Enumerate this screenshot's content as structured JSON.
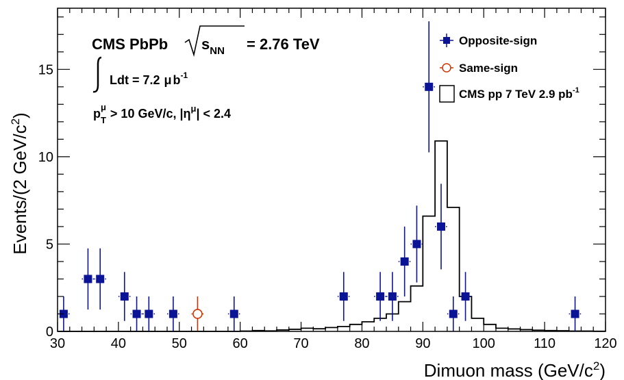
{
  "chart_data": {
    "type": "scatter",
    "x_axis": {
      "label": "Dimuon mass (GeV/c",
      "label_sup": "2",
      "label_end": ")",
      "range": [
        30,
        120
      ],
      "ticks": [
        "30",
        "40",
        "50",
        "60",
        "70",
        "80",
        "90",
        "100",
        "110",
        "120"
      ]
    },
    "y_axis": {
      "label": "Events/(2 GeV/c",
      "label_sup": "2",
      "label_end": ")",
      "range": [
        0,
        18.5
      ],
      "ticks": [
        "0",
        "5",
        "10",
        "15"
      ]
    },
    "annotations": {
      "line1_a": "CMS PbPb",
      "line1_s": "s",
      "line1_nn": "NN",
      "line1_b": "= 2.76 TeV",
      "line2_a": "Ldt = 7.2",
      "line2_mu": "μ",
      "line2_b": "b",
      "line2_sup": "-1",
      "line3_p": "p",
      "line3_sub": "T",
      "line3_sup": "μ",
      "line3_a": "> 10 GeV/c, |η",
      "line3_sup2": "μ",
      "line3_b": "| < 2.4"
    },
    "legend": {
      "placement": "top-right",
      "opposite": "Opposite-sign",
      "same": "Same-sign",
      "pp": "CMS pp 7 TeV 2.9 pb",
      "pp_sup": "-1"
    },
    "colors": {
      "opposite": "#0a1494",
      "same": "#cc3300",
      "histogram": "#000000"
    },
    "series": [
      {
        "name": "Opposite-sign",
        "points": [
          {
            "x": 31,
            "y": 1,
            "err": 1
          },
          {
            "x": 35,
            "y": 3,
            "err": 1.75
          },
          {
            "x": 37,
            "y": 3,
            "err": 1.75
          },
          {
            "x": 41,
            "y": 2,
            "err": 1.4
          },
          {
            "x": 43,
            "y": 1,
            "err": 1
          },
          {
            "x": 45,
            "y": 1,
            "err": 1
          },
          {
            "x": 49,
            "y": 1,
            "err": 1
          },
          {
            "x": 59,
            "y": 1,
            "err": 1
          },
          {
            "x": 77,
            "y": 2,
            "err": 1.4
          },
          {
            "x": 83,
            "y": 2,
            "err": 1.4
          },
          {
            "x": 85,
            "y": 2,
            "err": 1.4
          },
          {
            "x": 87,
            "y": 4,
            "err": 2.0
          },
          {
            "x": 89,
            "y": 5,
            "err": 2.2
          },
          {
            "x": 91,
            "y": 14,
            "err": 3.75
          },
          {
            "x": 93,
            "y": 6,
            "err": 2.45
          },
          {
            "x": 95,
            "y": 1,
            "err": 1
          },
          {
            "x": 97,
            "y": 2,
            "err": 1.4
          },
          {
            "x": 115,
            "y": 1,
            "err": 1
          }
        ]
      },
      {
        "name": "Same-sign",
        "points": [
          {
            "x": 53,
            "y": 1,
            "err": 1
          }
        ]
      }
    ],
    "histogram": {
      "name": "CMS pp 7 TeV 2.9 pb-1",
      "bin_edges": [
        30,
        32,
        34,
        36,
        38,
        40,
        42,
        44,
        46,
        48,
        50,
        52,
        54,
        56,
        58,
        60,
        62,
        64,
        66,
        68,
        70,
        72,
        74,
        76,
        78,
        80,
        82,
        84,
        86,
        88,
        90,
        92,
        94,
        96,
        98,
        100,
        102,
        104,
        106,
        108,
        110,
        112,
        114,
        116,
        118,
        120
      ],
      "values": [
        0,
        0,
        0,
        0,
        0,
        0,
        0,
        0,
        0,
        0,
        0,
        0,
        0,
        0,
        0,
        0.02,
        0.05,
        0.03,
        0.08,
        0.12,
        0.18,
        0.15,
        0.22,
        0.28,
        0.4,
        0.55,
        0.75,
        1.0,
        1.7,
        2.6,
        6.6,
        10.9,
        7.1,
        2.0,
        0.75,
        0.4,
        0.18,
        0.14,
        0.1,
        0.07,
        0.05,
        0.04,
        0.02,
        0.02,
        0.01
      ]
    }
  }
}
